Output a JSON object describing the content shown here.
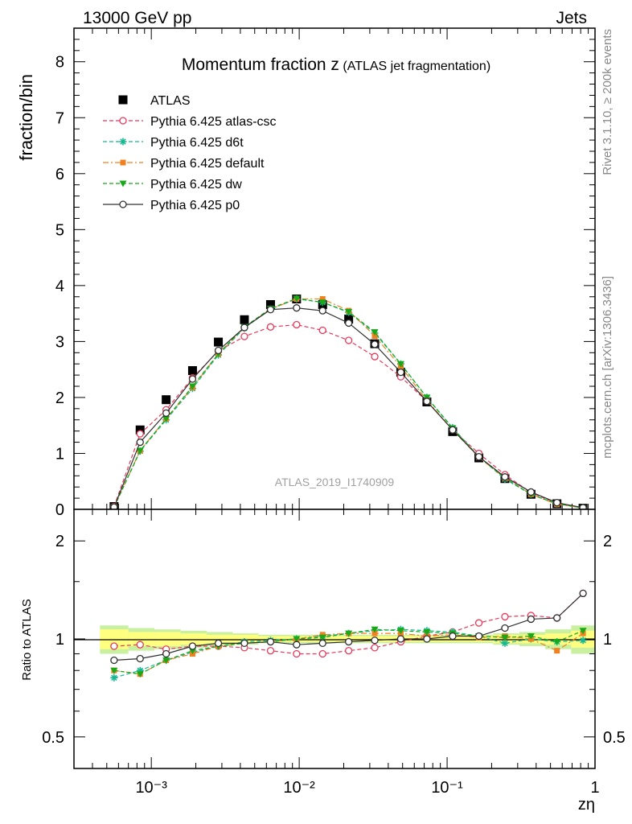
{
  "header": {
    "left": "13000 GeV pp",
    "right": "Jets"
  },
  "side_labels": {
    "rivet": "Rivet 3.1.10, ≥ 200k events",
    "mcplots": "mcplots.cern.ch [arXiv:1306.3436]"
  },
  "watermark": "ATLAS_2019_I1740909",
  "colors": {
    "ATLAS": "#000000",
    "atlas-csc": "#e8385a",
    "d6t": "#17b890",
    "default": "#f08020",
    "dw": "#18a818",
    "p0": "#303030",
    "band_inner": "#ffff80",
    "band_outer": "#c8f0a0"
  },
  "chart_data": [
    {
      "type": "line",
      "title": "Momentum fraction z",
      "title_suffix": "(ATLAS jet fragmentation)",
      "ylabel": "fraction/bin",
      "xlabel": "zη",
      "x_scale": "log",
      "xlim": [
        0.0003,
        1
      ],
      "ylim": [
        0,
        8.6
      ],
      "yticks": [
        "0",
        "1",
        "2",
        "3",
        "4",
        "5",
        "6",
        "7",
        "8"
      ],
      "xticks": [
        "10⁻³",
        "10⁻²",
        "10⁻¹",
        "1"
      ],
      "legend_position": "top-left",
      "x": [
        0.00056,
        0.00084,
        0.00126,
        0.0019,
        0.00284,
        0.00426,
        0.0064,
        0.0096,
        0.0144,
        0.0216,
        0.0324,
        0.0486,
        0.073,
        0.109,
        0.164,
        0.246,
        0.369,
        0.553,
        0.83
      ],
      "series": [
        {
          "name": "ATLAS",
          "key": "ATLAS",
          "style": "data",
          "marker": "square",
          "values": [
            0.05,
            1.42,
            1.96,
            2.48,
            2.99,
            3.39,
            3.66,
            3.76,
            3.66,
            3.4,
            2.96,
            2.45,
            1.92,
            1.39,
            0.92,
            0.55,
            0.27,
            0.1,
            0.02
          ]
        },
        {
          "name": "Pythia 6.425 atlas-csc",
          "key": "atlas-csc",
          "style": "dashed",
          "marker": "open-circle",
          "values": [
            0.05,
            1.35,
            1.78,
            2.35,
            2.83,
            3.09,
            3.26,
            3.3,
            3.2,
            3.02,
            2.73,
            2.37,
            1.93,
            1.42,
            1.0,
            0.62,
            0.3,
            0.11,
            0.025
          ]
        },
        {
          "name": "Pythia 6.425 d6t",
          "key": "d6t",
          "style": "dashed",
          "marker": "star",
          "values": [
            0.04,
            1.04,
            1.6,
            2.16,
            2.76,
            3.24,
            3.58,
            3.76,
            3.7,
            3.52,
            3.15,
            2.6,
            2.0,
            1.46,
            0.94,
            0.54,
            0.27,
            0.1,
            0.025
          ]
        },
        {
          "name": "Pythia 6.425 default",
          "key": "default",
          "style": "dashdot",
          "marker": "filled-square",
          "values": [
            0.04,
            1.05,
            1.62,
            2.18,
            2.78,
            3.25,
            3.58,
            3.76,
            3.76,
            3.55,
            3.1,
            2.55,
            1.95,
            1.42,
            0.93,
            0.56,
            0.27,
            0.09,
            0.025
          ]
        },
        {
          "name": "Pythia 6.425 dw",
          "key": "dw",
          "style": "dashed",
          "marker": "triangle-down",
          "values": [
            0.04,
            1.05,
            1.62,
            2.2,
            2.78,
            3.26,
            3.59,
            3.77,
            3.7,
            3.53,
            3.17,
            2.6,
            2.0,
            1.45,
            0.94,
            0.56,
            0.27,
            0.1,
            0.025
          ]
        },
        {
          "name": "Pythia 6.425 p0",
          "key": "p0",
          "style": "solid",
          "marker": "open-circle",
          "values": [
            0.04,
            1.2,
            1.72,
            2.33,
            2.84,
            3.25,
            3.57,
            3.6,
            3.55,
            3.33,
            2.95,
            2.45,
            1.93,
            1.42,
            0.94,
            0.58,
            0.31,
            0.12,
            0.03
          ]
        }
      ]
    },
    {
      "type": "line",
      "ylabel": "Ratio to ATLAS",
      "xlabel": "zη",
      "x_scale": "log",
      "y_scale": "log",
      "xlim": [
        0.0003,
        1
      ],
      "ylim": [
        0.4,
        2.5
      ],
      "yticks": [
        "0.5",
        "1",
        "2"
      ],
      "xticks": [
        "10⁻³",
        "10⁻²",
        "10⁻¹",
        "1"
      ],
      "x": [
        0.00056,
        0.00084,
        0.00126,
        0.0019,
        0.00284,
        0.00426,
        0.0064,
        0.0096,
        0.0144,
        0.0216,
        0.0324,
        0.0486,
        0.073,
        0.109,
        0.164,
        0.246,
        0.369,
        0.553,
        0.83
      ],
      "band": {
        "x_edges": [
          0.00045,
          0.0007,
          0.00105,
          0.00158,
          0.00237,
          0.00355,
          0.0053,
          0.008,
          0.012,
          0.018,
          0.027,
          0.0405,
          0.061,
          0.091,
          0.137,
          0.205,
          0.308,
          0.461,
          0.69,
          1.0
        ],
        "inner": [
          0.07,
          0.05,
          0.05,
          0.04,
          0.03,
          0.03,
          0.02,
          0.02,
          0.02,
          0.02,
          0.02,
          0.02,
          0.02,
          0.02,
          0.02,
          0.03,
          0.03,
          0.04,
          0.06
        ],
        "outer": [
          0.1,
          0.08,
          0.07,
          0.06,
          0.05,
          0.04,
          0.03,
          0.03,
          0.03,
          0.03,
          0.03,
          0.03,
          0.03,
          0.03,
          0.03,
          0.04,
          0.05,
          0.07,
          0.1
        ]
      },
      "series": [
        {
          "name": "Pythia 6.425 atlas-csc",
          "key": "atlas-csc",
          "style": "dashed",
          "marker": "open-circle",
          "values": [
            0.95,
            0.96,
            0.93,
            0.95,
            0.95,
            0.94,
            0.92,
            0.9,
            0.9,
            0.92,
            0.94,
            0.98,
            1.02,
            1.05,
            1.12,
            1.17,
            1.18,
            1.16,
            1.38
          ]
        },
        {
          "name": "Pythia 6.425 d6t",
          "key": "d6t",
          "style": "dashed",
          "marker": "star",
          "values": [
            0.76,
            0.8,
            0.86,
            0.91,
            0.95,
            0.98,
            0.99,
            1.0,
            1.02,
            1.04,
            1.06,
            1.07,
            1.06,
            1.05,
            1.02,
            0.97,
            1.0,
            0.98,
            0.99
          ]
        },
        {
          "name": "Pythia 6.425 default",
          "key": "default",
          "style": "dashdot",
          "marker": "filled-square",
          "values": [
            0.8,
            0.78,
            0.86,
            0.9,
            0.95,
            0.97,
            0.98,
            1.0,
            1.03,
            1.04,
            1.04,
            1.04,
            1.02,
            1.03,
            1.01,
            1.02,
            1.0,
            0.92,
            1.04
          ]
        },
        {
          "name": "Pythia 6.425 dw",
          "key": "dw",
          "style": "dashed",
          "marker": "triangle-down",
          "values": [
            0.8,
            0.78,
            0.86,
            0.92,
            0.95,
            0.97,
            0.98,
            1.0,
            1.01,
            1.04,
            1.07,
            1.06,
            1.05,
            1.04,
            1.02,
            1.01,
            1.02,
            0.98,
            1.06
          ]
        },
        {
          "name": "Pythia 6.425 p0",
          "key": "p0",
          "style": "solid",
          "marker": "open-circle",
          "values": [
            0.86,
            0.87,
            0.9,
            0.95,
            0.97,
            0.97,
            0.98,
            0.96,
            0.97,
            0.98,
            0.99,
            1.0,
            1.0,
            1.02,
            1.02,
            1.08,
            1.15,
            1.16,
            1.38
          ]
        }
      ]
    }
  ]
}
